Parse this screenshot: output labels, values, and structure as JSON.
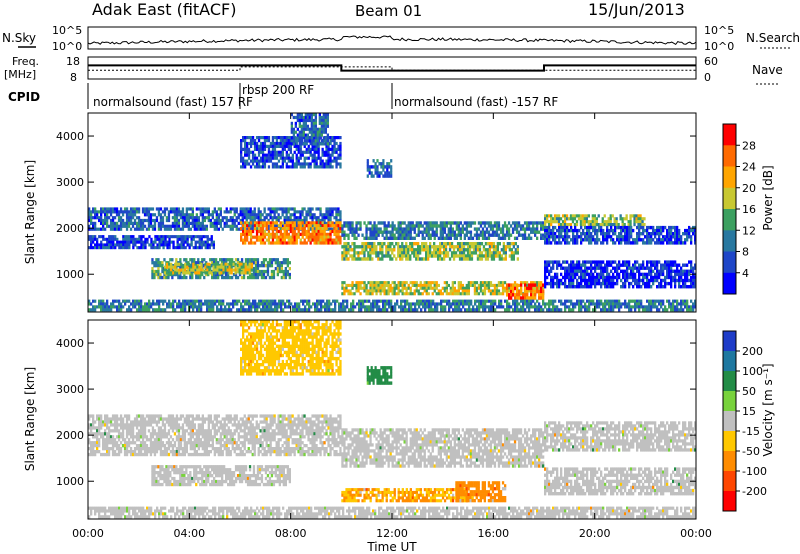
{
  "header": {
    "radar": "Adak East (fitACF)",
    "beam": "Beam 01",
    "date": "15/Jun/2013"
  },
  "sky_panel": {
    "left_label": "N.Sky",
    "left_ticks": [
      "10^5",
      "10^0"
    ],
    "right_ticks": [
      "10^5",
      "10^0"
    ],
    "right_label": "N.Search"
  },
  "freq_panel": {
    "left_label_1": "Freq.",
    "left_label_2": "[MHz]",
    "left_ticks": [
      "18",
      "8"
    ],
    "right_ticks": [
      "60",
      "0"
    ],
    "right_label": "Nave",
    "freq_ylim": [
      8,
      18
    ],
    "nave_ylim": [
      0,
      60
    ],
    "freq_series": [
      {
        "t": 0,
        "v": 14.2
      },
      {
        "t": 10,
        "v": 14.2
      },
      {
        "t": 10,
        "v": 11.8
      },
      {
        "t": 18,
        "v": 11.8
      },
      {
        "t": 18,
        "v": 14.2
      },
      {
        "t": 24,
        "v": 14.2
      }
    ],
    "nave_series": [
      {
        "t": 0,
        "v": 24
      },
      {
        "t": 6,
        "v": 24
      },
      {
        "t": 6,
        "v": 33
      },
      {
        "t": 12,
        "v": 33
      },
      {
        "t": 12,
        "v": 24
      },
      {
        "t": 24,
        "v": 24
      }
    ]
  },
  "cpid_panel": {
    "label": "CPID",
    "segments": [
      {
        "t_start": 0,
        "t_end": 6,
        "text": "normalsound (fast) 157 RF"
      },
      {
        "t_start": 6,
        "t_end": 12,
        "text": "rbsp 200 RF"
      },
      {
        "t_start": 12,
        "t_end": 24,
        "text": "normalsound (fast) -157 RF"
      }
    ]
  },
  "power_colorbar": {
    "label": "Power [dB]",
    "ticks": [
      "28",
      "24",
      "20",
      "16",
      "12",
      "8",
      "4"
    ],
    "colors": [
      "#ff0000",
      "#ff6a00",
      "#ffa500",
      "#c8c832",
      "#3ca060",
      "#2878a0",
      "#1e46c8",
      "#0000ff"
    ]
  },
  "velocity_colorbar": {
    "label": "Velocity [m s⁻¹]",
    "ticks": [
      "200",
      "100",
      "50",
      "15",
      "-15",
      "-50",
      "-100",
      "-200"
    ],
    "colors": [
      "#1e3cc8",
      "#1e78a0",
      "#228c46",
      "#78d23c",
      "#c0c0c0",
      "#ffc800",
      "#ff8c00",
      "#ff4600",
      "#ff0000"
    ]
  },
  "chart_data": {
    "type": "heatmap",
    "title": "Adak East (fitACF) Beam 01 15/Jun/2013",
    "xlabel": "Time UT",
    "x_ticks": [
      "00:00",
      "04:00",
      "08:00",
      "12:00",
      "16:00",
      "20:00",
      "00:00"
    ],
    "xlim_hours": [
      0,
      24
    ],
    "ylabel": "Slant Range [km]",
    "y_ticks": [
      1000,
      2000,
      3000,
      4000
    ],
    "ylim_km": [
      180,
      4500
    ],
    "power_bands": [
      {
        "t0": 0.0,
        "t1": 10.0,
        "r0": 1950,
        "r1": 2450,
        "power": 8
      },
      {
        "t0": 6.0,
        "t1": 10.0,
        "r0": 1650,
        "r1": 2150,
        "power": 24
      },
      {
        "t0": 0.0,
        "t1": 5.0,
        "r0": 1550,
        "r1": 1850,
        "power": 6
      },
      {
        "t0": 2.5,
        "t1": 8.0,
        "r0": 900,
        "r1": 1350,
        "power": 12
      },
      {
        "t0": 3.0,
        "t1": 6.5,
        "r0": 1000,
        "r1": 1250,
        "power": 18
      },
      {
        "t0": 6.0,
        "t1": 10.0,
        "r0": 3300,
        "r1": 4000,
        "power": 6
      },
      {
        "t0": 8.0,
        "t1": 9.5,
        "r0": 3800,
        "r1": 4500,
        "power": 8
      },
      {
        "t0": 10.0,
        "t1": 18.0,
        "r0": 1750,
        "r1": 2150,
        "power": 10
      },
      {
        "t0": 10.0,
        "t1": 17.0,
        "r0": 1300,
        "r1": 1700,
        "power": 16
      },
      {
        "t0": 10.0,
        "t1": 18.0,
        "r0": 550,
        "r1": 850,
        "power": 18
      },
      {
        "t0": 16.5,
        "t1": 18.0,
        "r0": 450,
        "r1": 800,
        "power": 26
      },
      {
        "t0": 18.0,
        "t1": 22.0,
        "r0": 2050,
        "r1": 2300,
        "power": 16
      },
      {
        "t0": 18.0,
        "t1": 24.0,
        "r0": 1650,
        "r1": 2050,
        "power": 6
      },
      {
        "t0": 18.0,
        "t1": 24.0,
        "r0": 700,
        "r1": 1300,
        "power": 4
      },
      {
        "t0": 11.0,
        "t1": 12.0,
        "r0": 3100,
        "r1": 3500,
        "power": 8
      },
      {
        "t0": 0.0,
        "t1": 24.0,
        "r0": 200,
        "r1": 450,
        "power": 10
      }
    ],
    "velocity_bands": [
      {
        "t0": 0.0,
        "t1": 10.0,
        "r0": 1550,
        "r1": 2450,
        "velocity": 0
      },
      {
        "t0": 2.5,
        "t1": 8.0,
        "r0": 900,
        "r1": 1350,
        "velocity": 0
      },
      {
        "t0": 10.0,
        "t1": 18.0,
        "r0": 1300,
        "r1": 2150,
        "velocity": 0
      },
      {
        "t0": 10.0,
        "t1": 15.0,
        "r0": 550,
        "r1": 850,
        "velocity": -50
      },
      {
        "t0": 14.5,
        "t1": 16.5,
        "r0": 550,
        "r1": 1000,
        "velocity": -60
      },
      {
        "t0": 18.0,
        "t1": 24.0,
        "r0": 1650,
        "r1": 2300,
        "velocity": 0
      },
      {
        "t0": 18.0,
        "t1": 24.0,
        "r0": 700,
        "r1": 1300,
        "velocity": 0
      },
      {
        "t0": 6.0,
        "t1": 10.0,
        "r0": 3300,
        "r1": 4500,
        "velocity": -40
      },
      {
        "t0": 11.0,
        "t1": 12.0,
        "r0": 3100,
        "r1": 3500,
        "velocity": 60
      },
      {
        "t0": 0.0,
        "t1": 24.0,
        "r0": 200,
        "r1": 450,
        "velocity": 0
      }
    ]
  }
}
